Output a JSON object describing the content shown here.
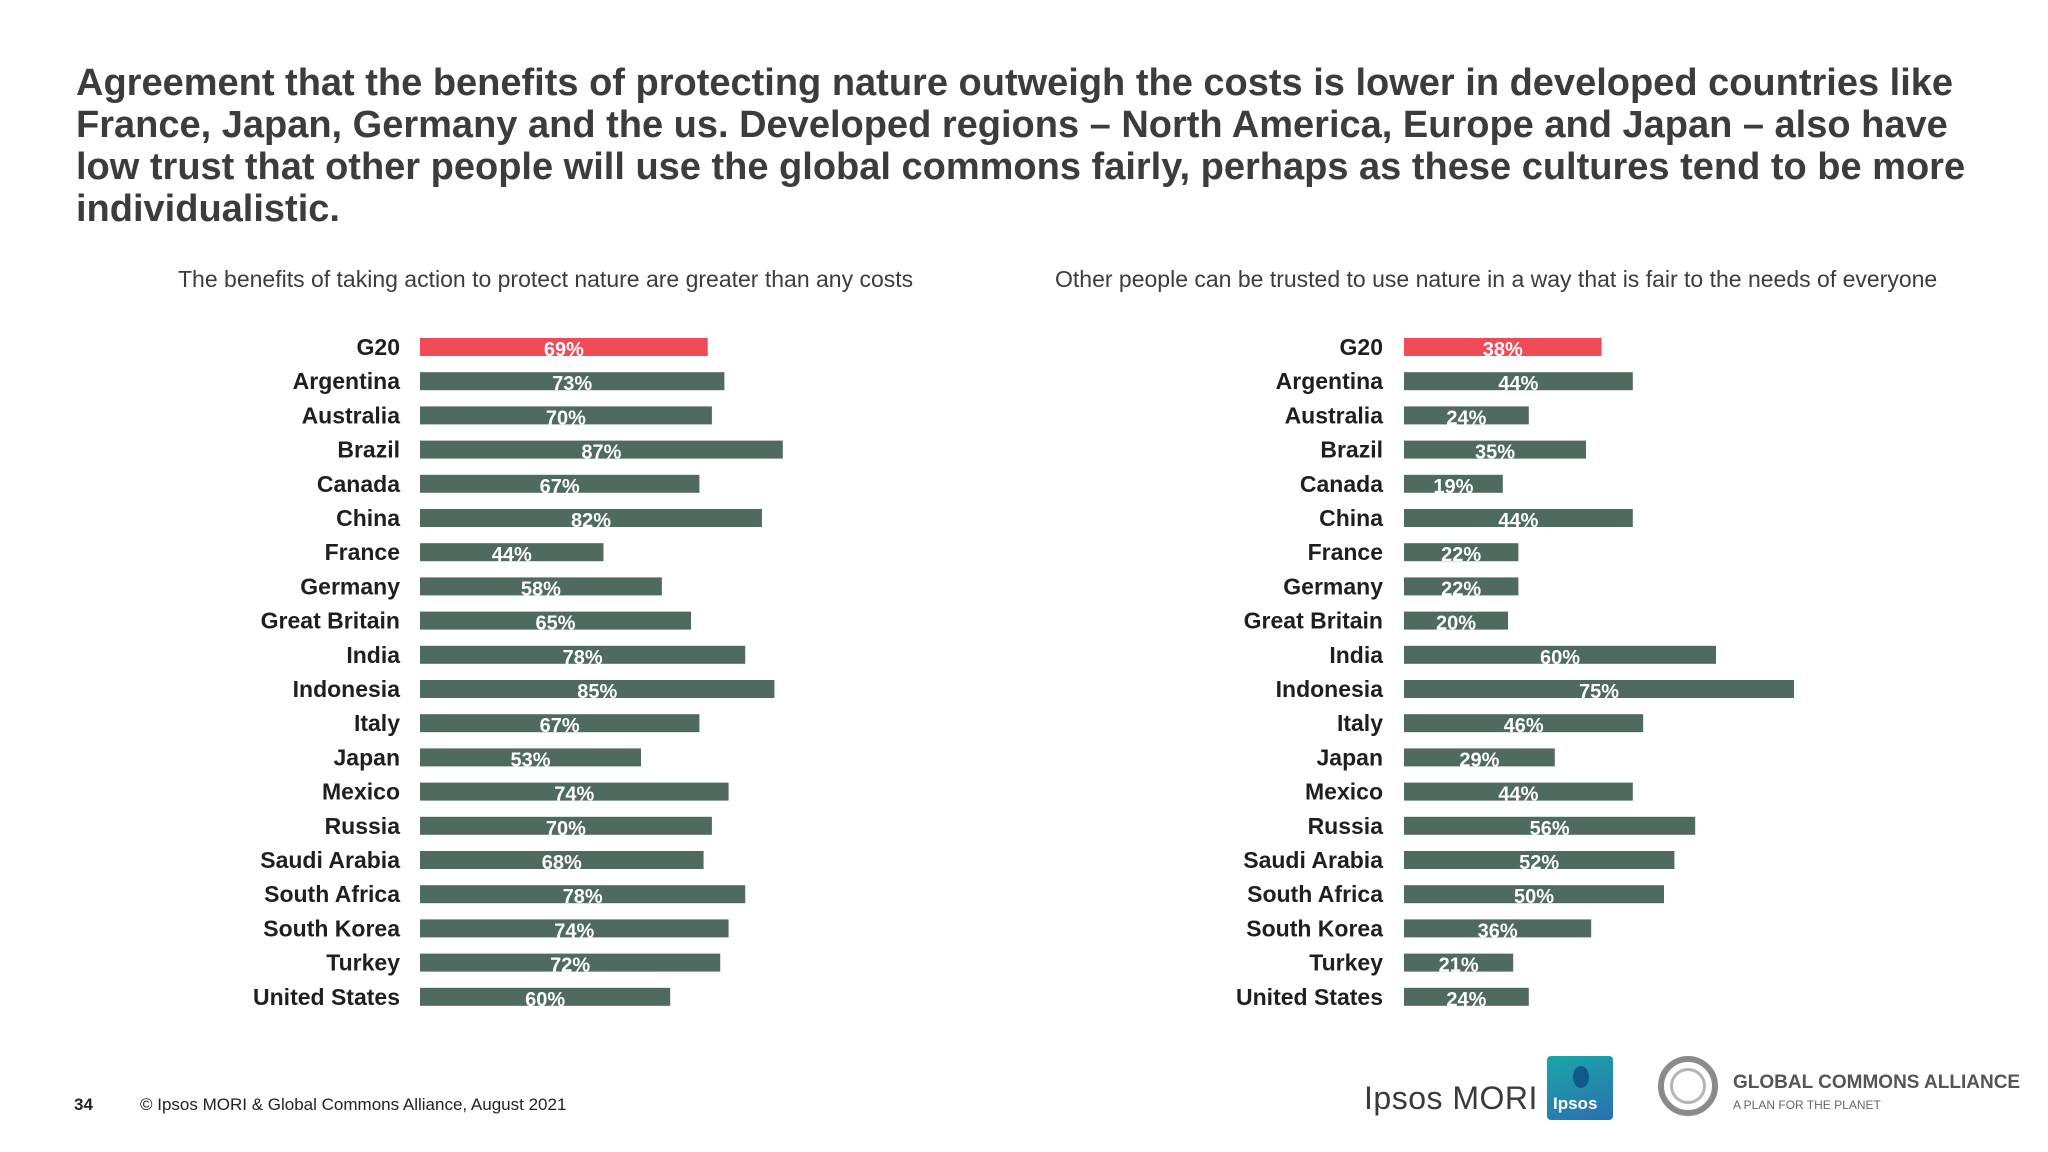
{
  "headline": "Agreement that the benefits of protecting nature outweigh the costs is lower in developed countries like France, Japan, Germany and the us. Developed regions – North America, Europe and Japan – also have low trust that other people will use the global commons fairly, perhaps as these cultures tend to be more individualistic.",
  "footer": {
    "page_number": "34",
    "copyright": "© Ipsos MORI & Global Commons Alliance, August 2021"
  },
  "logos": {
    "ipsos_mori": "Ipsos MORI",
    "ipsos_badge": "Ipsos",
    "gca_name": "GLOBAL COMMONS ALLIANCE",
    "gca_tagline": "A PLAN FOR THE PLANET"
  },
  "colors": {
    "highlight": "#ef4a55",
    "bar": "#4f6b5f"
  },
  "chart_data": [
    {
      "type": "bar",
      "orientation": "horizontal",
      "title": "The benefits of taking action to protect nature are greater than any costs",
      "categories": [
        "G20",
        "Argentina",
        "Australia",
        "Brazil",
        "Canada",
        "China",
        "France",
        "Germany",
        "Great Britain",
        "India",
        "Indonesia",
        "Italy",
        "Japan",
        "Mexico",
        "Russia",
        "Saudi Arabia",
        "South Africa",
        "South Korea",
        "Turkey",
        "United States"
      ],
      "values": [
        69,
        73,
        70,
        87,
        67,
        82,
        44,
        58,
        65,
        78,
        85,
        67,
        53,
        74,
        70,
        68,
        78,
        74,
        72,
        60
      ],
      "labels": [
        "69%",
        "73%",
        "70%",
        "87%",
        "67%",
        "82%",
        "44%",
        "58%",
        "65%",
        "78%",
        "85%",
        "67%",
        "53%",
        "74%",
        "70%",
        "68%",
        "78%",
        "74%",
        "72%",
        "60%"
      ],
      "highlight_index": 0,
      "xlim": [
        0,
        100
      ]
    },
    {
      "type": "bar",
      "orientation": "horizontal",
      "title": "Other people can be trusted to use nature in a way that is fair to the needs of everyone",
      "categories": [
        "G20",
        "Argentina",
        "Australia",
        "Brazil",
        "Canada",
        "China",
        "France",
        "Germany",
        "Great Britain",
        "India",
        "Indonesia",
        "Italy",
        "Japan",
        "Mexico",
        "Russia",
        "Saudi Arabia",
        "South Africa",
        "South Korea",
        "Turkey",
        "United States"
      ],
      "values": [
        38,
        44,
        24,
        35,
        19,
        44,
        22,
        22,
        20,
        60,
        75,
        46,
        29,
        44,
        56,
        52,
        50,
        36,
        21,
        24
      ],
      "labels": [
        "38%",
        "44%",
        "24%",
        "35%",
        "19%",
        "44%",
        "22%",
        "22%",
        "20%",
        "60%",
        "75%",
        "46%",
        "29%",
        "44%",
        "56%",
        "52%",
        "50%",
        "36%",
        "21%",
        "24%"
      ],
      "highlight_index": 0,
      "xlim": [
        0,
        100
      ]
    }
  ]
}
